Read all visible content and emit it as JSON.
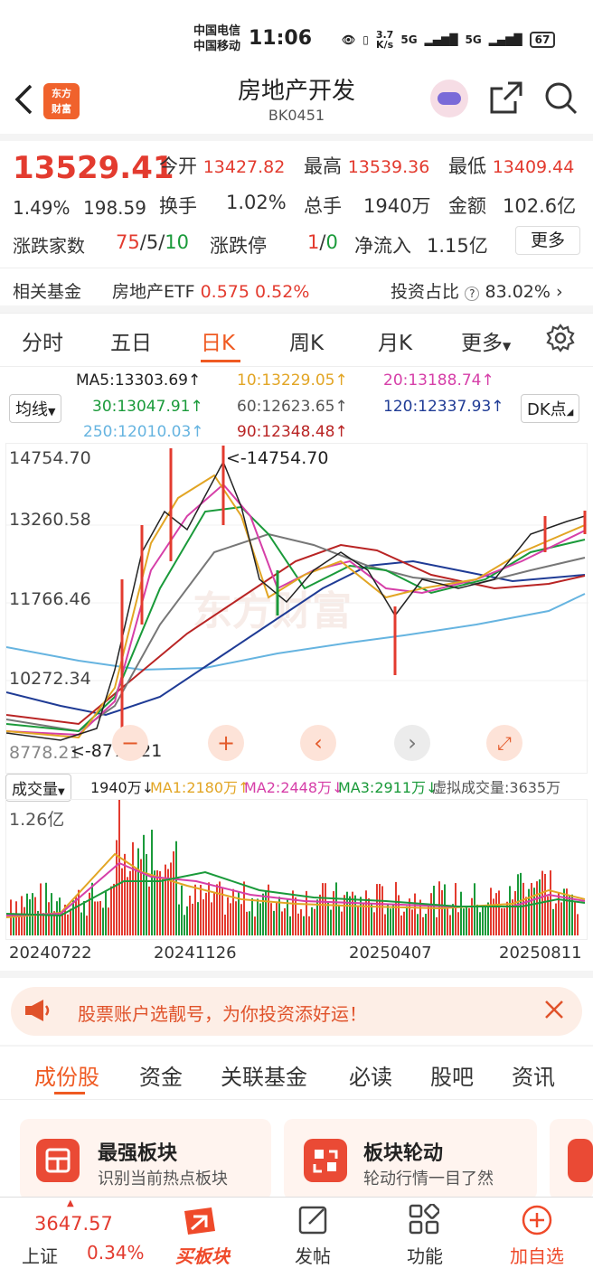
{
  "status": {
    "carrier1": "中国电信",
    "carrier2": "中国移动",
    "time": "11:06",
    "speed_top": "3.7",
    "speed_bot": "K/s",
    "net1": "5G",
    "net2": "5G",
    "battery": "67"
  },
  "header": {
    "title": "房地产开发",
    "code": "BK0451",
    "logo_line1": "东方",
    "logo_line2": "财富"
  },
  "quote": {
    "price": "13529.41",
    "pct": "1.49%",
    "chg": "198.59",
    "open_label": "今开",
    "open": "13427.82",
    "high_label": "最高",
    "high": "13539.36",
    "low_label": "最低",
    "low": "13409.44",
    "turnover_label": "换手",
    "turnover": "1.02%",
    "hands_label": "总手",
    "hands": "1940万",
    "amount_label": "金额",
    "amount": "102.6亿",
    "updown_label": "涨跌家数",
    "up": "75",
    "flat": "5",
    "down": "10",
    "limit_label": "涨跌停",
    "limit_up": "1",
    "limit_down": "0",
    "inflow_label": "净流入",
    "inflow": "1.15亿",
    "more": "更多",
    "fund_label": "相关基金",
    "fund_name": "房地产ETF",
    "fund_price": "0.575",
    "fund_pct": "0.52%",
    "ratio_label": "投资占比",
    "ratio": "83.02%"
  },
  "tabs": [
    "分时",
    "五日",
    "日K",
    "周K",
    "月K",
    "更多"
  ],
  "ma": {
    "selector": "均线",
    "dk": "DK点",
    "ma5": "MA5:13303.69↑",
    "ma10": "10:13229.05↑",
    "ma20": "20:13188.74↑",
    "ma30": "30:13047.91↑",
    "ma60": "60:12623.65↑",
    "ma120": "120:12337.93↑",
    "ma250": "250:12010.03↑",
    "ma90": "90:12348.48↑"
  },
  "chart_data": {
    "type": "candlestick",
    "y_ticks": [
      "14754.70",
      "13260.58",
      "11766.46",
      "10272.34",
      "8778.21"
    ],
    "max_label": "<-14754.70",
    "min_label": "<-8778.21",
    "dates": [
      "20240722",
      "20241126",
      "20250407",
      "20250811"
    ]
  },
  "volume": {
    "selector": "成交量",
    "vol": "1940万↓",
    "ma1": "MA1:2180万↑",
    "ma2": "MA2:2448万↓",
    "ma3": "MA3:2911万↓",
    "virtual": "虚拟成交量:3635万",
    "max": "1.26亿"
  },
  "banner": {
    "text": "股票账户选靓号，为你投资添好运！"
  },
  "subtabs": [
    "成份股",
    "资金",
    "关联基金",
    "必读",
    "股吧",
    "资讯"
  ],
  "cards": [
    {
      "title": "最强板块",
      "sub": "识别当前热点板块"
    },
    {
      "title": "板块轮动",
      "sub": "轮动行情一目了然"
    }
  ],
  "bottom": {
    "index_value": "3647.57",
    "index_name": "上证",
    "index_pct": "0.34%",
    "nav": [
      "买板块",
      "发帖",
      "功能",
      "加自选"
    ]
  },
  "colors": {
    "red": "#e33b2f",
    "green": "#1a9a3a",
    "accent": "#ef5a22"
  }
}
